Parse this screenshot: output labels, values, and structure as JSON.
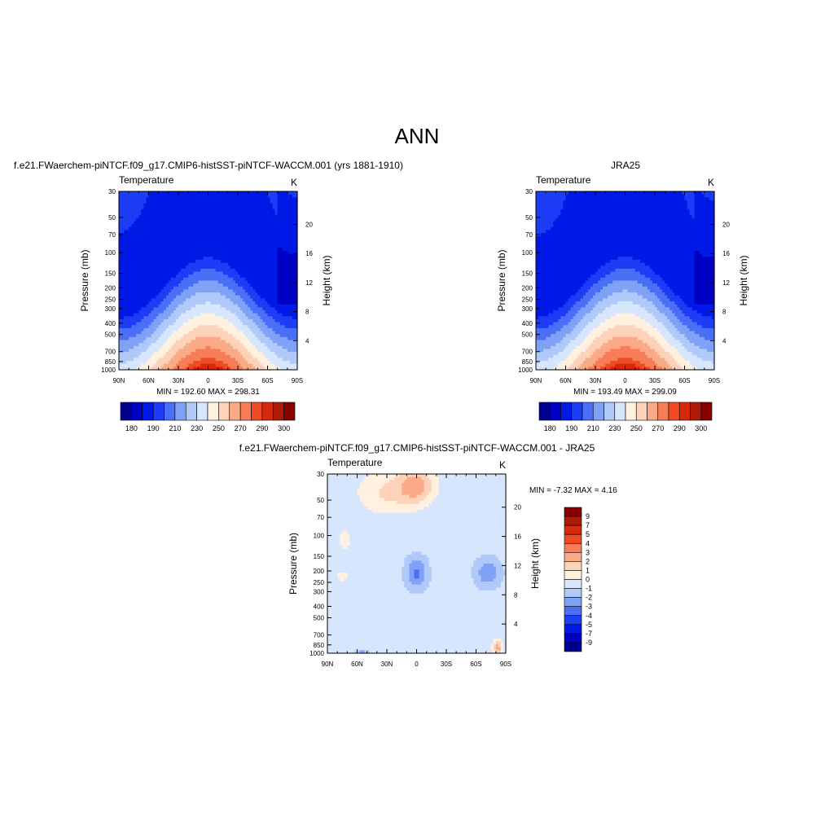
{
  "figure": {
    "title": "ANN"
  },
  "colors": {
    "diverging": [
      "#00008f",
      "#0000c2",
      "#0019e6",
      "#1c3cf5",
      "#4a6ef5",
      "#7fa2f7",
      "#b0c9f9",
      "#d6e6fc",
      "#fff0e0",
      "#fdd2b9",
      "#fbaa88",
      "#f77d56",
      "#f04a25",
      "#d62a0d",
      "#ae1a05",
      "#850000"
    ],
    "diff": [
      "#00008f",
      "#0000c2",
      "#0019e6",
      "#1c3cf5",
      "#4a6ef5",
      "#7fa2f7",
      "#b0c9f9",
      "#d6e6fc",
      "#fff0e0",
      "#fdd2b9",
      "#fbaa88",
      "#f77d56",
      "#f04a25",
      "#d62a0d",
      "#ae1a05",
      "#850000"
    ]
  },
  "chart_data": [
    {
      "type": "heatmap",
      "title": "f.e21.FWaerchem-piNTCF.f09_g17.CMIP6-histSST-piNTCF-WACCM.001 (yrs 1881-1910)",
      "variable": "Temperature",
      "units": "K",
      "ylabel": "Pressure (mb)",
      "y2label": "Height (km)",
      "x_ticks": [
        "90N",
        "60N",
        "30N",
        "0",
        "30S",
        "60S",
        "90S"
      ],
      "y_ticks": [
        "30",
        "50",
        "70",
        "100",
        "150",
        "200",
        "250",
        "300",
        "400",
        "500",
        "700",
        "850",
        "1000"
      ],
      "y2_ticks": [
        "20",
        "16",
        "12",
        "8",
        "4"
      ],
      "stats": "MIN = 192.60  MAX = 298.31",
      "colorbar_labels": [
        "180",
        "190",
        "210",
        "230",
        "250",
        "270",
        "290",
        "300"
      ],
      "field": "model"
    },
    {
      "type": "heatmap",
      "title": "JRA25",
      "variable": "Temperature",
      "units": "K",
      "ylabel": "Pressure (mb)",
      "y2label": "Height (km)",
      "x_ticks": [
        "90N",
        "60N",
        "30N",
        "0",
        "30S",
        "60S",
        "90S"
      ],
      "y_ticks": [
        "30",
        "50",
        "70",
        "100",
        "150",
        "200",
        "250",
        "300",
        "400",
        "500",
        "700",
        "850",
        "1000"
      ],
      "y2_ticks": [
        "20",
        "16",
        "12",
        "8",
        "4"
      ],
      "stats": "MIN = 193.49  MAX = 299.09",
      "colorbar_labels": [
        "180",
        "190",
        "210",
        "230",
        "250",
        "270",
        "290",
        "300"
      ],
      "field": "obs"
    },
    {
      "type": "heatmap",
      "title": "f.e21.FWaerchem-piNTCF.f09_g17.CMIP6-histSST-piNTCF-WACCM.001 - JRA25",
      "variable": "Temperature",
      "units": "K",
      "ylabel": "Pressure (mb)",
      "y2label": "Height (km)",
      "x_ticks": [
        "90N",
        "60N",
        "30N",
        "0",
        "30S",
        "60S",
        "90S"
      ],
      "y_ticks": [
        "30",
        "50",
        "70",
        "100",
        "150",
        "200",
        "250",
        "300",
        "400",
        "500",
        "700",
        "850",
        "1000"
      ],
      "y2_ticks": [
        "20",
        "16",
        "12",
        "8",
        "4"
      ],
      "stats": "MIN =  -7.32  MAX =   4.16",
      "colorbar_labels": [
        "9",
        "7",
        "5",
        "4",
        "3",
        "2",
        "1",
        "0",
        "-1",
        "-2",
        "-3",
        "-4",
        "-5",
        "-7",
        "-9"
      ],
      "field": "diff"
    }
  ]
}
